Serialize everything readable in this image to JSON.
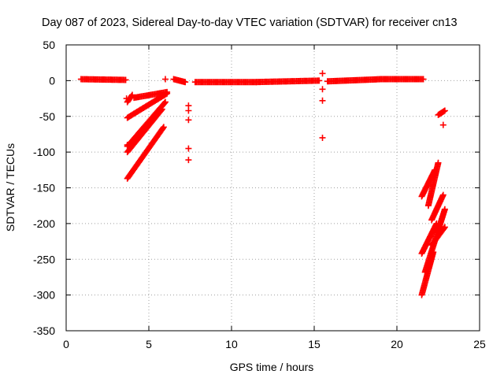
{
  "chart_data": {
    "type": "scatter",
    "title": "Day 087 of 2023, Sidereal Day-to-day VTEC variation (SDTVAR) for receiver cn13",
    "xlabel": "GPS time / hours",
    "ylabel": "SDTVAR / TECUs",
    "xlim": [
      0,
      25
    ],
    "ylim": [
      -350,
      50
    ],
    "xticks": [
      "0",
      "5",
      "10",
      "15",
      "20",
      "25"
    ],
    "yticks": [
      "50",
      "0",
      "-50",
      "-100",
      "-150",
      "-200",
      "-250",
      "-300",
      "-350"
    ],
    "grid": true,
    "marker": "+",
    "color": "#ff0000",
    "segments": [
      {
        "x": [
          0.9,
          3.6
        ],
        "y": [
          2,
          1
        ]
      },
      {
        "x": [
          3.7,
          4.0
        ],
        "y": [
          -30,
          -20
        ]
      },
      {
        "x": [
          3.7,
          6.1
        ],
        "y": [
          -52,
          -18
        ]
      },
      {
        "x": [
          4.1,
          6.1
        ],
        "y": [
          -24,
          -16
        ]
      },
      {
        "x": [
          3.7,
          6.0
        ],
        "y": [
          -92,
          -30
        ]
      },
      {
        "x": [
          3.7,
          5.8
        ],
        "y": [
          -100,
          -40
        ]
      },
      {
        "x": [
          3.7,
          5.9
        ],
        "y": [
          -137,
          -65
        ]
      },
      {
        "x": [
          6.5,
          7.2
        ],
        "y": [
          2,
          -2
        ]
      },
      {
        "x": [
          7.8,
          11.5
        ],
        "y": [
          -2,
          -2
        ]
      },
      {
        "x": [
          11.5,
          15.3
        ],
        "y": [
          -2,
          0
        ]
      },
      {
        "x": [
          15.8,
          19.0
        ],
        "y": [
          -1,
          2
        ]
      },
      {
        "x": [
          19.0,
          21.6
        ],
        "y": [
          2,
          2
        ]
      },
      {
        "x": [
          21.5,
          22.3
        ],
        "y": [
          -162,
          -125
        ]
      },
      {
        "x": [
          21.9,
          22.5
        ],
        "y": [
          -175,
          -115
        ]
      },
      {
        "x": [
          22.1,
          22.8
        ],
        "y": [
          -195,
          -160
        ]
      },
      {
        "x": [
          21.5,
          22.4
        ],
        "y": [
          -242,
          -200
        ]
      },
      {
        "x": [
          21.5,
          22.2
        ],
        "y": [
          -300,
          -240
        ]
      },
      {
        "x": [
          21.7,
          22.9
        ],
        "y": [
          -268,
          -180
        ]
      },
      {
        "x": [
          22.1,
          22.9
        ],
        "y": [
          -230,
          -205
        ]
      },
      {
        "x": [
          22.5,
          22.9
        ],
        "y": [
          -48,
          -42
        ]
      }
    ],
    "points": [
      {
        "x": 3.65,
        "y": -25
      },
      {
        "x": 3.7,
        "y": -90
      },
      {
        "x": 6.0,
        "y": 2
      },
      {
        "x": 7.4,
        "y": -35
      },
      {
        "x": 7.4,
        "y": -42
      },
      {
        "x": 7.4,
        "y": -55
      },
      {
        "x": 7.4,
        "y": -95
      },
      {
        "x": 7.4,
        "y": -111
      },
      {
        "x": 15.5,
        "y": 10
      },
      {
        "x": 15.5,
        "y": -12
      },
      {
        "x": 15.5,
        "y": -28
      },
      {
        "x": 15.5,
        "y": -80
      },
      {
        "x": 22.8,
        "y": -62
      }
    ]
  }
}
